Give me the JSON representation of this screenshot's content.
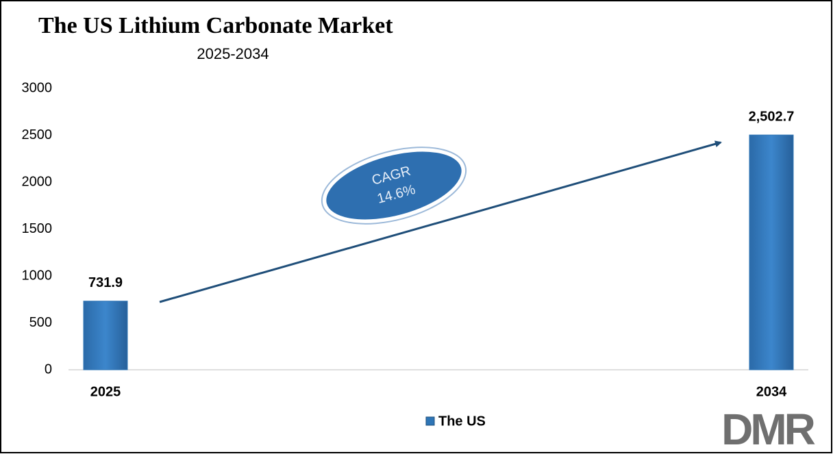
{
  "chart_data": {
    "type": "bar",
    "title": "The US Lithium Carbonate Market",
    "subtitle": "2025-2034",
    "categories": [
      "2025",
      "2034"
    ],
    "series": [
      {
        "name": "The US",
        "color": "#2e75b6",
        "values": [
          731.9,
          2502.7
        ],
        "value_labels": [
          "731.9",
          "2,502.7"
        ]
      }
    ],
    "ylim": [
      0,
      3000
    ],
    "yticks": [
      0,
      500,
      1000,
      1500,
      2000,
      2500,
      3000
    ],
    "annotation": [
      "CAGR",
      "14.6%"
    ]
  },
  "logo": "DMR"
}
